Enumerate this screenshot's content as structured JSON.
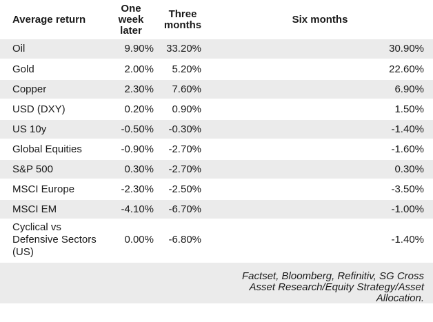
{
  "colors": {
    "row_stripe": "#ebebeb",
    "text": "#191919",
    "background": "#ffffff"
  },
  "chart_data": {
    "type": "table",
    "columns": [
      "Average return",
      "One week later",
      "Three months",
      "Six months"
    ],
    "rows": [
      [
        "Oil",
        "9.90%",
        "33.20%",
        "30.90%"
      ],
      [
        "Gold",
        "2.00%",
        "5.20%",
        "22.60%"
      ],
      [
        "Copper",
        "2.30%",
        "7.60%",
        "6.90%"
      ],
      [
        "USD (DXY)",
        "0.20%",
        "0.90%",
        "1.50%"
      ],
      [
        "US 10y",
        "-0.50%",
        "-0.30%",
        "-1.40%"
      ],
      [
        "Global Equities",
        "-0.90%",
        "-2.70%",
        "-1.60%"
      ],
      [
        "S&P 500",
        "0.30%",
        "-2.70%",
        "0.30%"
      ],
      [
        "MSCI Europe",
        "-2.30%",
        "-2.50%",
        "-3.50%"
      ],
      [
        "MSCI EM",
        "-4.10%",
        "-6.70%",
        "-1.00%"
      ],
      [
        "Cyclical vs Defensive Sectors (US)",
        "0.00%",
        "-6.80%",
        "-1.40%"
      ]
    ],
    "source_note": "Factset, Bloomberg, Refinitiv, SG Cross Asset Research/Equity Strategy/Asset Allocation.",
    "layout": {
      "striped_rows": true,
      "value_alignment": "right",
      "grid": "none"
    }
  }
}
